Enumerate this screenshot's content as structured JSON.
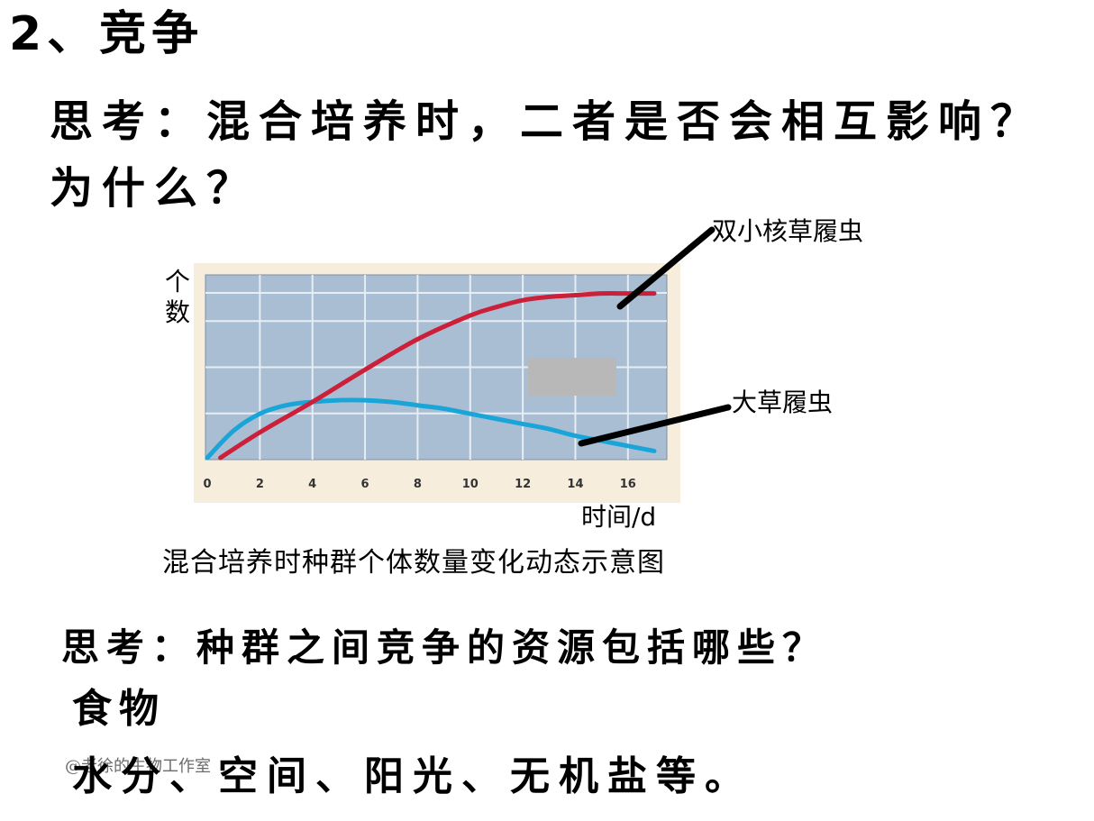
{
  "heading": "2、竞争",
  "question1": {
    "line1": "思考：混合培养时，二者是否会相互影响？",
    "line2": "为什么？"
  },
  "chart_data": {
    "type": "line",
    "x_ticks": [
      0,
      2,
      4,
      6,
      8,
      10,
      12,
      14,
      16
    ],
    "xlim": [
      0,
      17
    ],
    "ylim": [
      0,
      1
    ],
    "ylabel": "个数",
    "xlabel": "时间/d",
    "y_ticks_shown": false,
    "grid": true,
    "caption": "混合培养时种群个体数量变化动态示意图",
    "series": [
      {
        "name": "双小核草履虫",
        "color": "#cc1f3a",
        "x": [
          0.5,
          2,
          4,
          6,
          8,
          10,
          11,
          12,
          13,
          14,
          15,
          16,
          17
        ],
        "y": [
          0.0,
          0.15,
          0.33,
          0.52,
          0.7,
          0.84,
          0.89,
          0.93,
          0.95,
          0.96,
          0.97,
          0.97,
          0.97
        ]
      },
      {
        "name": "大草履虫",
        "color": "#1aa5d8",
        "x": [
          0,
          1,
          2,
          3,
          4,
          5,
          6,
          7,
          8,
          9,
          10,
          11,
          12,
          13,
          14,
          15,
          16,
          17
        ],
        "y": [
          0.0,
          0.16,
          0.26,
          0.31,
          0.33,
          0.34,
          0.34,
          0.33,
          0.31,
          0.29,
          0.26,
          0.23,
          0.2,
          0.17,
          0.13,
          0.1,
          0.07,
          0.04
        ]
      }
    ]
  },
  "question2": "思考：种群之间竞争的资源包括哪些？",
  "answer_line1": "食物",
  "answer_line2": "水分、空间、阳光、无机盐等。",
  "watermark": "@老徐的生物工作室"
}
